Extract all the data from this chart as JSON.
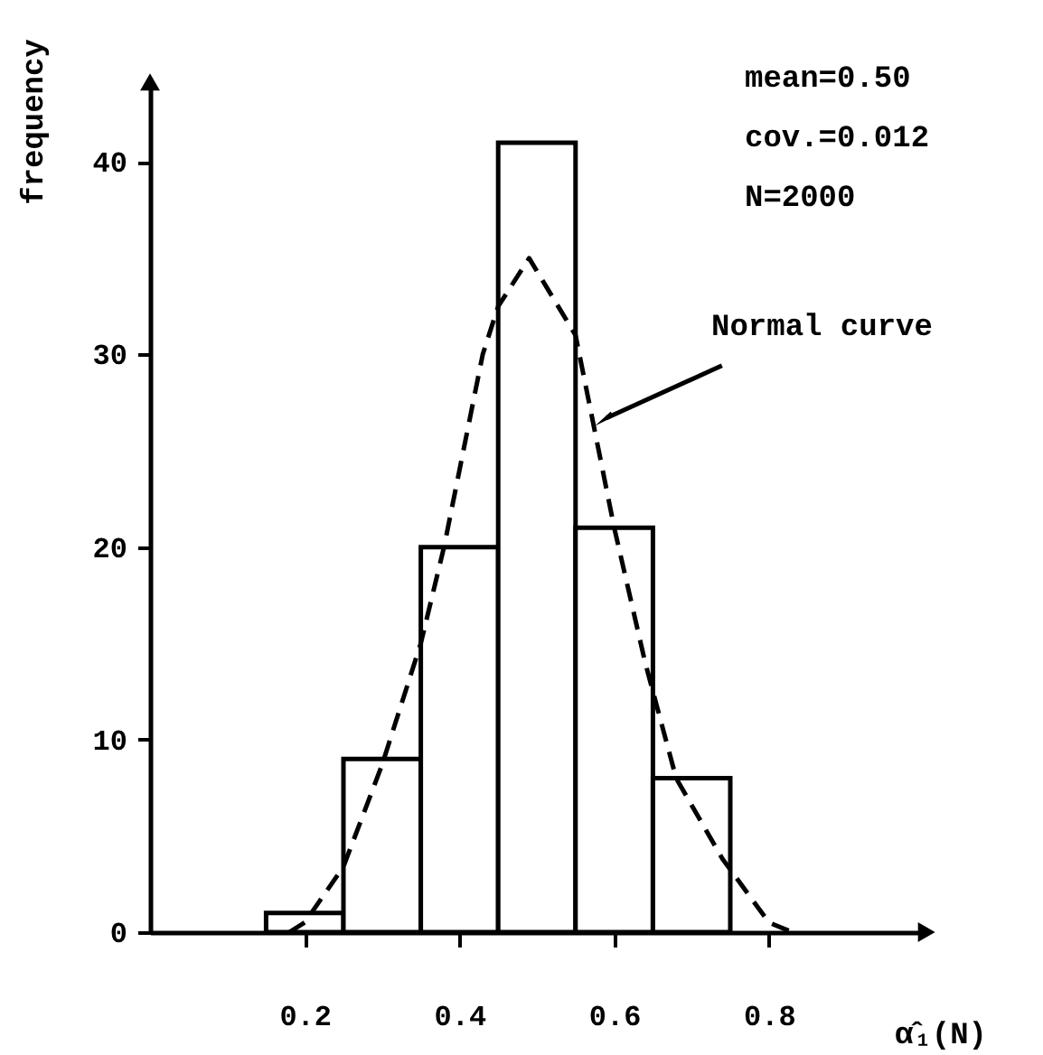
{
  "chart_data": {
    "type": "histogram",
    "xlabel": "α̂₁(N)",
    "ylabel": "frequency",
    "bins": [
      0.15,
      0.25,
      0.35,
      0.45,
      0.55,
      0.65,
      0.75
    ],
    "values": [
      1,
      9,
      20,
      41,
      21,
      8
    ],
    "color": "#ffffff",
    "series": [
      {
        "type": "line",
        "color": "#000000",
        "line_style": "dashed",
        "x": [
          0.18,
          0.2,
          0.25,
          0.3,
          0.35,
          0.38,
          0.43,
          0.45,
          0.49,
          0.55,
          0.58,
          0.6,
          0.64,
          0.68,
          0.74,
          0.8,
          0.83
        ],
        "values": [
          0,
          0.5,
          3.4,
          8.7,
          15,
          20,
          30,
          32.5,
          35,
          31,
          25,
          21,
          14,
          8,
          3.8,
          0.5,
          0
        ]
      }
    ],
    "xlim": [
      0,
      1
    ],
    "xticks": [
      0.2,
      0.4,
      0.6,
      0.8
    ],
    "ylim": [
      0,
      44
    ],
    "yticks": [
      0,
      10,
      20,
      30,
      40
    ],
    "grid": false,
    "annotations": [
      "mean=0.50",
      "cov.=0.012",
      "N=2000",
      {
        "text": "Normal curve",
        "x": 0.59,
        "y": 26.7
      }
    ]
  }
}
